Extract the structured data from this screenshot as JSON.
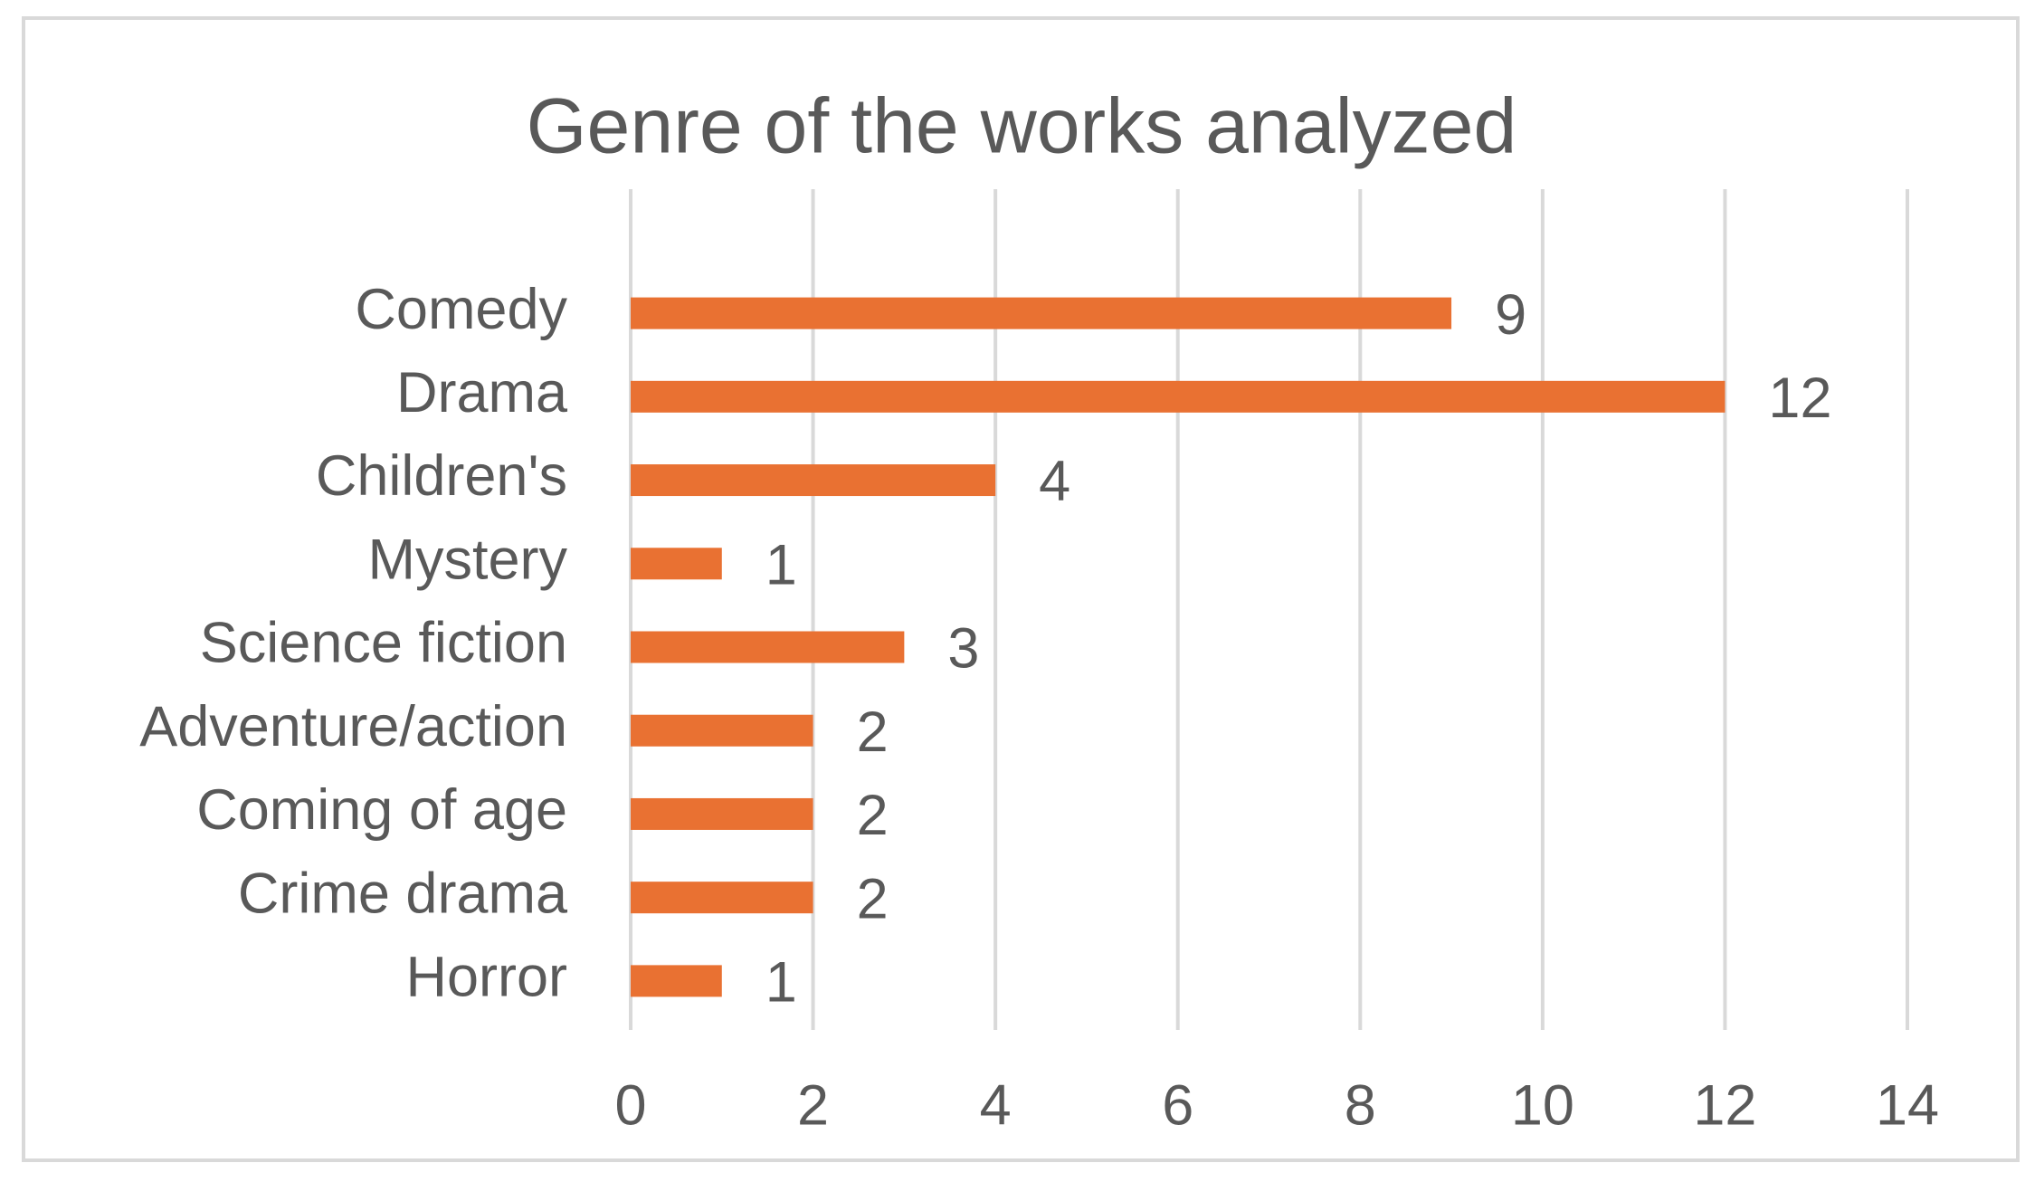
{
  "chart_data": {
    "type": "bar",
    "orientation": "horizontal",
    "title": "Genre of the works analyzed",
    "categories": [
      "Comedy",
      "Drama",
      "Children's",
      "Mystery",
      "Science fiction",
      "Adventure/action",
      "Coming of age",
      "Crime drama",
      "Horror"
    ],
    "values": [
      9,
      12,
      4,
      1,
      3,
      2,
      2,
      2,
      1
    ],
    "color": "#E97132",
    "xlim": [
      0,
      14
    ],
    "xticks": [
      0,
      2,
      4,
      6,
      8,
      10,
      12,
      14
    ],
    "grid": true,
    "data_labels": true
  }
}
